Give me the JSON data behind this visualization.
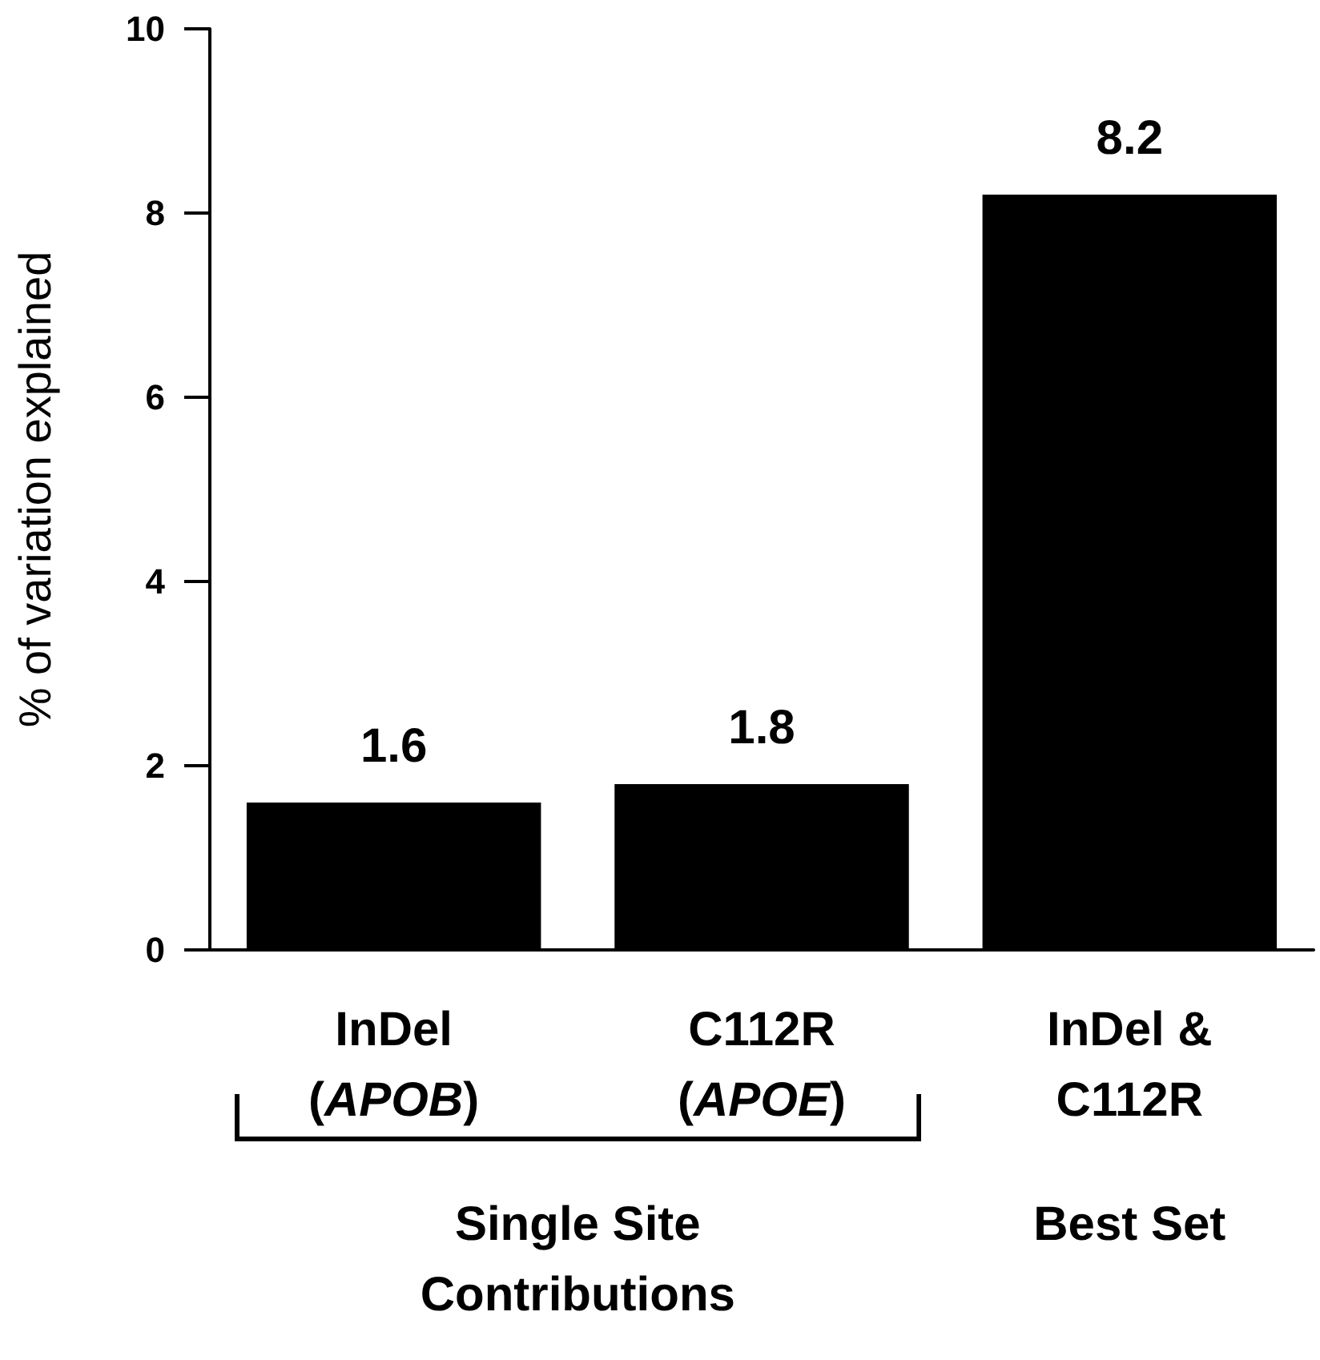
{
  "chart_data": {
    "type": "bar",
    "categories": [
      "InDel\n(APOB)",
      "C112R\n(APOE)",
      "InDel &\nC112R"
    ],
    "values": [
      1.6,
      1.8,
      8.2
    ],
    "color": "#000000",
    "ylabel": "% of variation explained",
    "ylim": [
      0,
      10
    ],
    "yticks": [
      0,
      2,
      4,
      6,
      8,
      10
    ],
    "data_labels": true,
    "annotations": [
      "Single Site\nContributions",
      "Best Set"
    ]
  }
}
